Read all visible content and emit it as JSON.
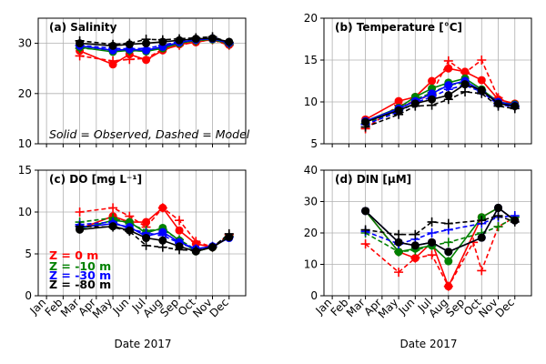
{
  "figure": {
    "note": "Solid = Observed, Dashed = Model",
    "legend": [
      {
        "label": "Z =    0 m",
        "color": "#ff0000"
      },
      {
        "label": "Z =   -10 m",
        "color": "#008000"
      },
      {
        "label": "Z =   -30 m",
        "color": "#0000ff"
      },
      {
        "label": "Z =   -80 m",
        "color": "#000000"
      }
    ],
    "colors": {
      "0m": "#ff0000",
      "10m": "#008000",
      "30m": "#0000ff",
      "80m": "#000000",
      "grid": "#b0b0b0"
    }
  },
  "chart_data": [
    {
      "type": "line",
      "title": "(a) Salinity",
      "xlabel": "",
      "ylabel": "",
      "x_ticks": [
        "Jan",
        "Feb",
        "Mar",
        "Apr",
        "May",
        "Jun",
        "Jul",
        "Aug",
        "Sep",
        "Oct",
        "Nov",
        "Dec"
      ],
      "x_tick_labels_shown": false,
      "y_ticks": [
        10,
        20,
        30
      ],
      "ylim": [
        10,
        35
      ],
      "grid": true,
      "observed_x": [
        3,
        5,
        6,
        7,
        8,
        9,
        10,
        11,
        12
      ],
      "model_x": [
        3,
        5,
        6,
        7,
        8,
        9,
        10,
        11,
        12
      ],
      "series": [
        {
          "name": "Z =    0 m",
          "color": "#ff0000",
          "observed": [
            28.5,
            25.8,
            27.8,
            26.7,
            28.6,
            29.8,
            30.2,
            30.8,
            29.7
          ],
          "model": [
            27.5,
            26.5,
            26.8,
            27.0,
            28.8,
            29.6,
            30.3,
            30.7,
            29.6
          ]
        },
        {
          "name": "Z =   -10 m",
          "color": "#008000",
          "observed": [
            29.2,
            28.3,
            28.6,
            28.4,
            29.0,
            30.0,
            30.6,
            30.8,
            30.0
          ],
          "model": [
            29.0,
            28.7,
            28.5,
            28.5,
            29.2,
            30.2,
            30.5,
            30.8,
            29.8
          ]
        },
        {
          "name": "Z =   -30 m",
          "color": "#0000ff",
          "observed": [
            29.5,
            28.6,
            28.8,
            28.6,
            29.3,
            30.2,
            30.7,
            30.9,
            30.1
          ],
          "model": [
            29.6,
            29.0,
            28.9,
            29.0,
            29.6,
            30.4,
            30.8,
            31.0,
            30.0
          ]
        },
        {
          "name": "Z =   -80 m",
          "color": "#000000",
          "observed": [
            30.0,
            29.5,
            29.8,
            30.0,
            30.3,
            30.6,
            30.9,
            31.0,
            30.3
          ],
          "model": [
            30.5,
            29.8,
            30.0,
            30.8,
            30.7,
            30.9,
            31.1,
            31.3,
            30.2
          ]
        }
      ]
    },
    {
      "type": "line",
      "title": "(b) Temperature [°C]",
      "xlabel": "",
      "ylabel": "",
      "x_ticks": [
        "Jan",
        "Feb",
        "Mar",
        "Apr",
        "May",
        "Jun",
        "Jul",
        "Aug",
        "Sep",
        "Oct",
        "Nov",
        "Dec"
      ],
      "x_tick_labels_shown": false,
      "y_ticks": [
        5,
        10,
        15,
        20
      ],
      "ylim": [
        5,
        20
      ],
      "grid": true,
      "observed_x": [
        3,
        5,
        6,
        7,
        8,
        9,
        10,
        11,
        12
      ],
      "model_x": [
        3,
        5,
        6,
        7,
        8,
        9,
        10,
        11,
        12
      ],
      "series": [
        {
          "name": "Z =    0 m",
          "color": "#ff0000",
          "observed": [
            7.9,
            10.1,
            10.6,
            12.5,
            14.0,
            13.6,
            12.6,
            10.3,
            9.8
          ],
          "model": [
            6.8,
            9.6,
            10.0,
            11.0,
            14.9,
            13.5,
            15.0,
            10.5,
            9.5
          ]
        },
        {
          "name": "Z =   -10 m",
          "color": "#008000",
          "observed": [
            7.7,
            9.3,
            10.6,
            11.6,
            12.3,
            12.8,
            11.5,
            10.0,
            9.7
          ],
          "model": [
            7.4,
            9.0,
            10.3,
            11.1,
            12.0,
            12.3,
            11.4,
            9.8,
            9.5
          ]
        },
        {
          "name": "Z =   -30 m",
          "color": "#0000ff",
          "observed": [
            7.7,
            9.2,
            10.1,
            11.0,
            12.0,
            12.5,
            11.3,
            10.0,
            9.6
          ],
          "model": [
            7.3,
            8.8,
            9.9,
            10.6,
            11.5,
            12.0,
            11.2,
            9.7,
            9.4
          ]
        },
        {
          "name": "Z =   -80 m",
          "color": "#000000",
          "observed": [
            7.6,
            9.0,
            9.8,
            10.3,
            10.8,
            12.1,
            11.4,
            9.8,
            9.5
          ],
          "model": [
            7.0,
            8.5,
            9.5,
            9.6,
            10.3,
            11.2,
            11.0,
            9.5,
            9.2
          ]
        }
      ]
    },
    {
      "type": "line",
      "title": "(c) DO [mg L⁻¹]",
      "xlabel": "Date 2017",
      "ylabel": "",
      "x_ticks": [
        "Jan",
        "Feb",
        "Mar",
        "Apr",
        "May",
        "Jun",
        "Jul",
        "Aug",
        "Sep",
        "Oct",
        "Nov",
        "Dec"
      ],
      "x_tick_labels_shown": true,
      "y_ticks": [
        0,
        5,
        10,
        15
      ],
      "ylim": [
        0,
        15
      ],
      "grid": true,
      "observed_x": [
        3,
        5,
        6,
        7,
        8,
        9,
        10,
        11,
        12
      ],
      "model_x": [
        3,
        5,
        6,
        7,
        8,
        9,
        10,
        11,
        12
      ],
      "series": [
        {
          "name": "Z =    0 m",
          "color": "#ff0000",
          "observed": [
            8.0,
            9.5,
            8.8,
            8.8,
            10.5,
            7.8,
            6.2,
            5.8,
            7.0
          ],
          "model": [
            10.0,
            10.5,
            9.5,
            8.2,
            10.5,
            9.0,
            6.5,
            5.8,
            7.3
          ]
        },
        {
          "name": "Z =   -10 m",
          "color": "#008000",
          "observed": [
            8.0,
            9.0,
            8.8,
            7.5,
            8.1,
            6.6,
            5.3,
            5.8,
            7.0
          ],
          "model": [
            8.8,
            9.3,
            8.6,
            7.8,
            7.9,
            6.7,
            5.5,
            5.8,
            7.1
          ]
        },
        {
          "name": "Z =   -30 m",
          "color": "#0000ff",
          "observed": [
            8.2,
            8.6,
            8.2,
            7.1,
            7.6,
            6.4,
            5.6,
            5.9,
            6.9
          ],
          "model": [
            8.5,
            8.8,
            8.0,
            7.5,
            7.2,
            6.3,
            5.6,
            5.9,
            7.0
          ]
        },
        {
          "name": "Z =   -80 m",
          "color": "#000000",
          "observed": [
            7.9,
            8.3,
            7.8,
            6.9,
            6.6,
            5.9,
            5.3,
            5.8,
            7.0
          ],
          "model": [
            8.3,
            8.2,
            7.7,
            6.0,
            5.8,
            5.5,
            5.4,
            5.8,
            7.4
          ]
        }
      ]
    },
    {
      "type": "line",
      "title": "(d) DIN  [μM]",
      "xlabel": "Date 2017",
      "ylabel": "",
      "x_ticks": [
        "Jan",
        "Feb",
        "Mar",
        "Apr",
        "May",
        "Jun",
        "Jul",
        "Aug",
        "Sep",
        "Oct",
        "Nov",
        "Dec"
      ],
      "x_tick_labels_shown": true,
      "y_ticks": [
        0,
        10,
        20,
        30,
        40
      ],
      "ylim": [
        0,
        40
      ],
      "grid": true,
      "observed_x": [
        3,
        5,
        6,
        7,
        8,
        10,
        11,
        12
      ],
      "model_x": [
        3,
        5,
        6,
        7,
        8,
        9.5,
        10,
        11,
        12
      ],
      "series": [
        {
          "name": "Z =    0 m",
          "color": "#ff0000",
          "observed_x": [
            3,
            5,
            6,
            7,
            8,
            10,
            11,
            12
          ],
          "observed": [
            27.0,
            14.0,
            12.0,
            17.0,
            3.0,
            25.0,
            28.0,
            24.0
          ],
          "model_x": [
            3,
            5,
            6,
            7,
            8,
            9.5,
            10,
            11,
            12
          ],
          "model": [
            16.5,
            7.5,
            12.0,
            13.0,
            3.0,
            17.0,
            8.0,
            22.0,
            25.0
          ]
        },
        {
          "name": "Z =   -10 m",
          "color": "#008000",
          "observed_x": [
            3,
            5,
            6,
            7,
            8,
            10,
            11,
            12
          ],
          "observed": [
            27.0,
            14.0,
            15.0,
            16.0,
            11.0,
            25.0,
            28.0,
            24.0
          ],
          "model_x": [
            3,
            5,
            6,
            7,
            8,
            10,
            11,
            12
          ],
          "model": [
            20.0,
            14.0,
            14.5,
            16.0,
            17.0,
            20.0,
            22.0,
            25.0
          ]
        },
        {
          "name": "Z =   -30 m",
          "color": "#0000ff",
          "observed_x": [
            3,
            5,
            6,
            7,
            8,
            10,
            11,
            12
          ],
          "observed": [
            27.0,
            17.0,
            16.0,
            17.0,
            14.0,
            18.5,
            28.0,
            24.0
          ],
          "model_x": [
            3,
            5,
            6,
            7,
            8,
            10,
            11,
            12
          ],
          "model": [
            20.5,
            16.5,
            18.0,
            20.0,
            21.0,
            23.0,
            25.0,
            25.5
          ]
        },
        {
          "name": "Z =   -80 m",
          "color": "#000000",
          "observed_x": [
            3,
            5,
            6,
            7,
            8,
            10,
            11,
            12
          ],
          "observed": [
            27.0,
            17.0,
            16.0,
            17.0,
            14.0,
            18.5,
            28.0,
            24.0
          ],
          "model_x": [
            3,
            5,
            6,
            7,
            8,
            10,
            11,
            12
          ],
          "model": [
            21.0,
            19.5,
            19.5,
            23.5,
            23.0,
            24.0,
            25.5,
            23.5
          ]
        }
      ]
    }
  ]
}
